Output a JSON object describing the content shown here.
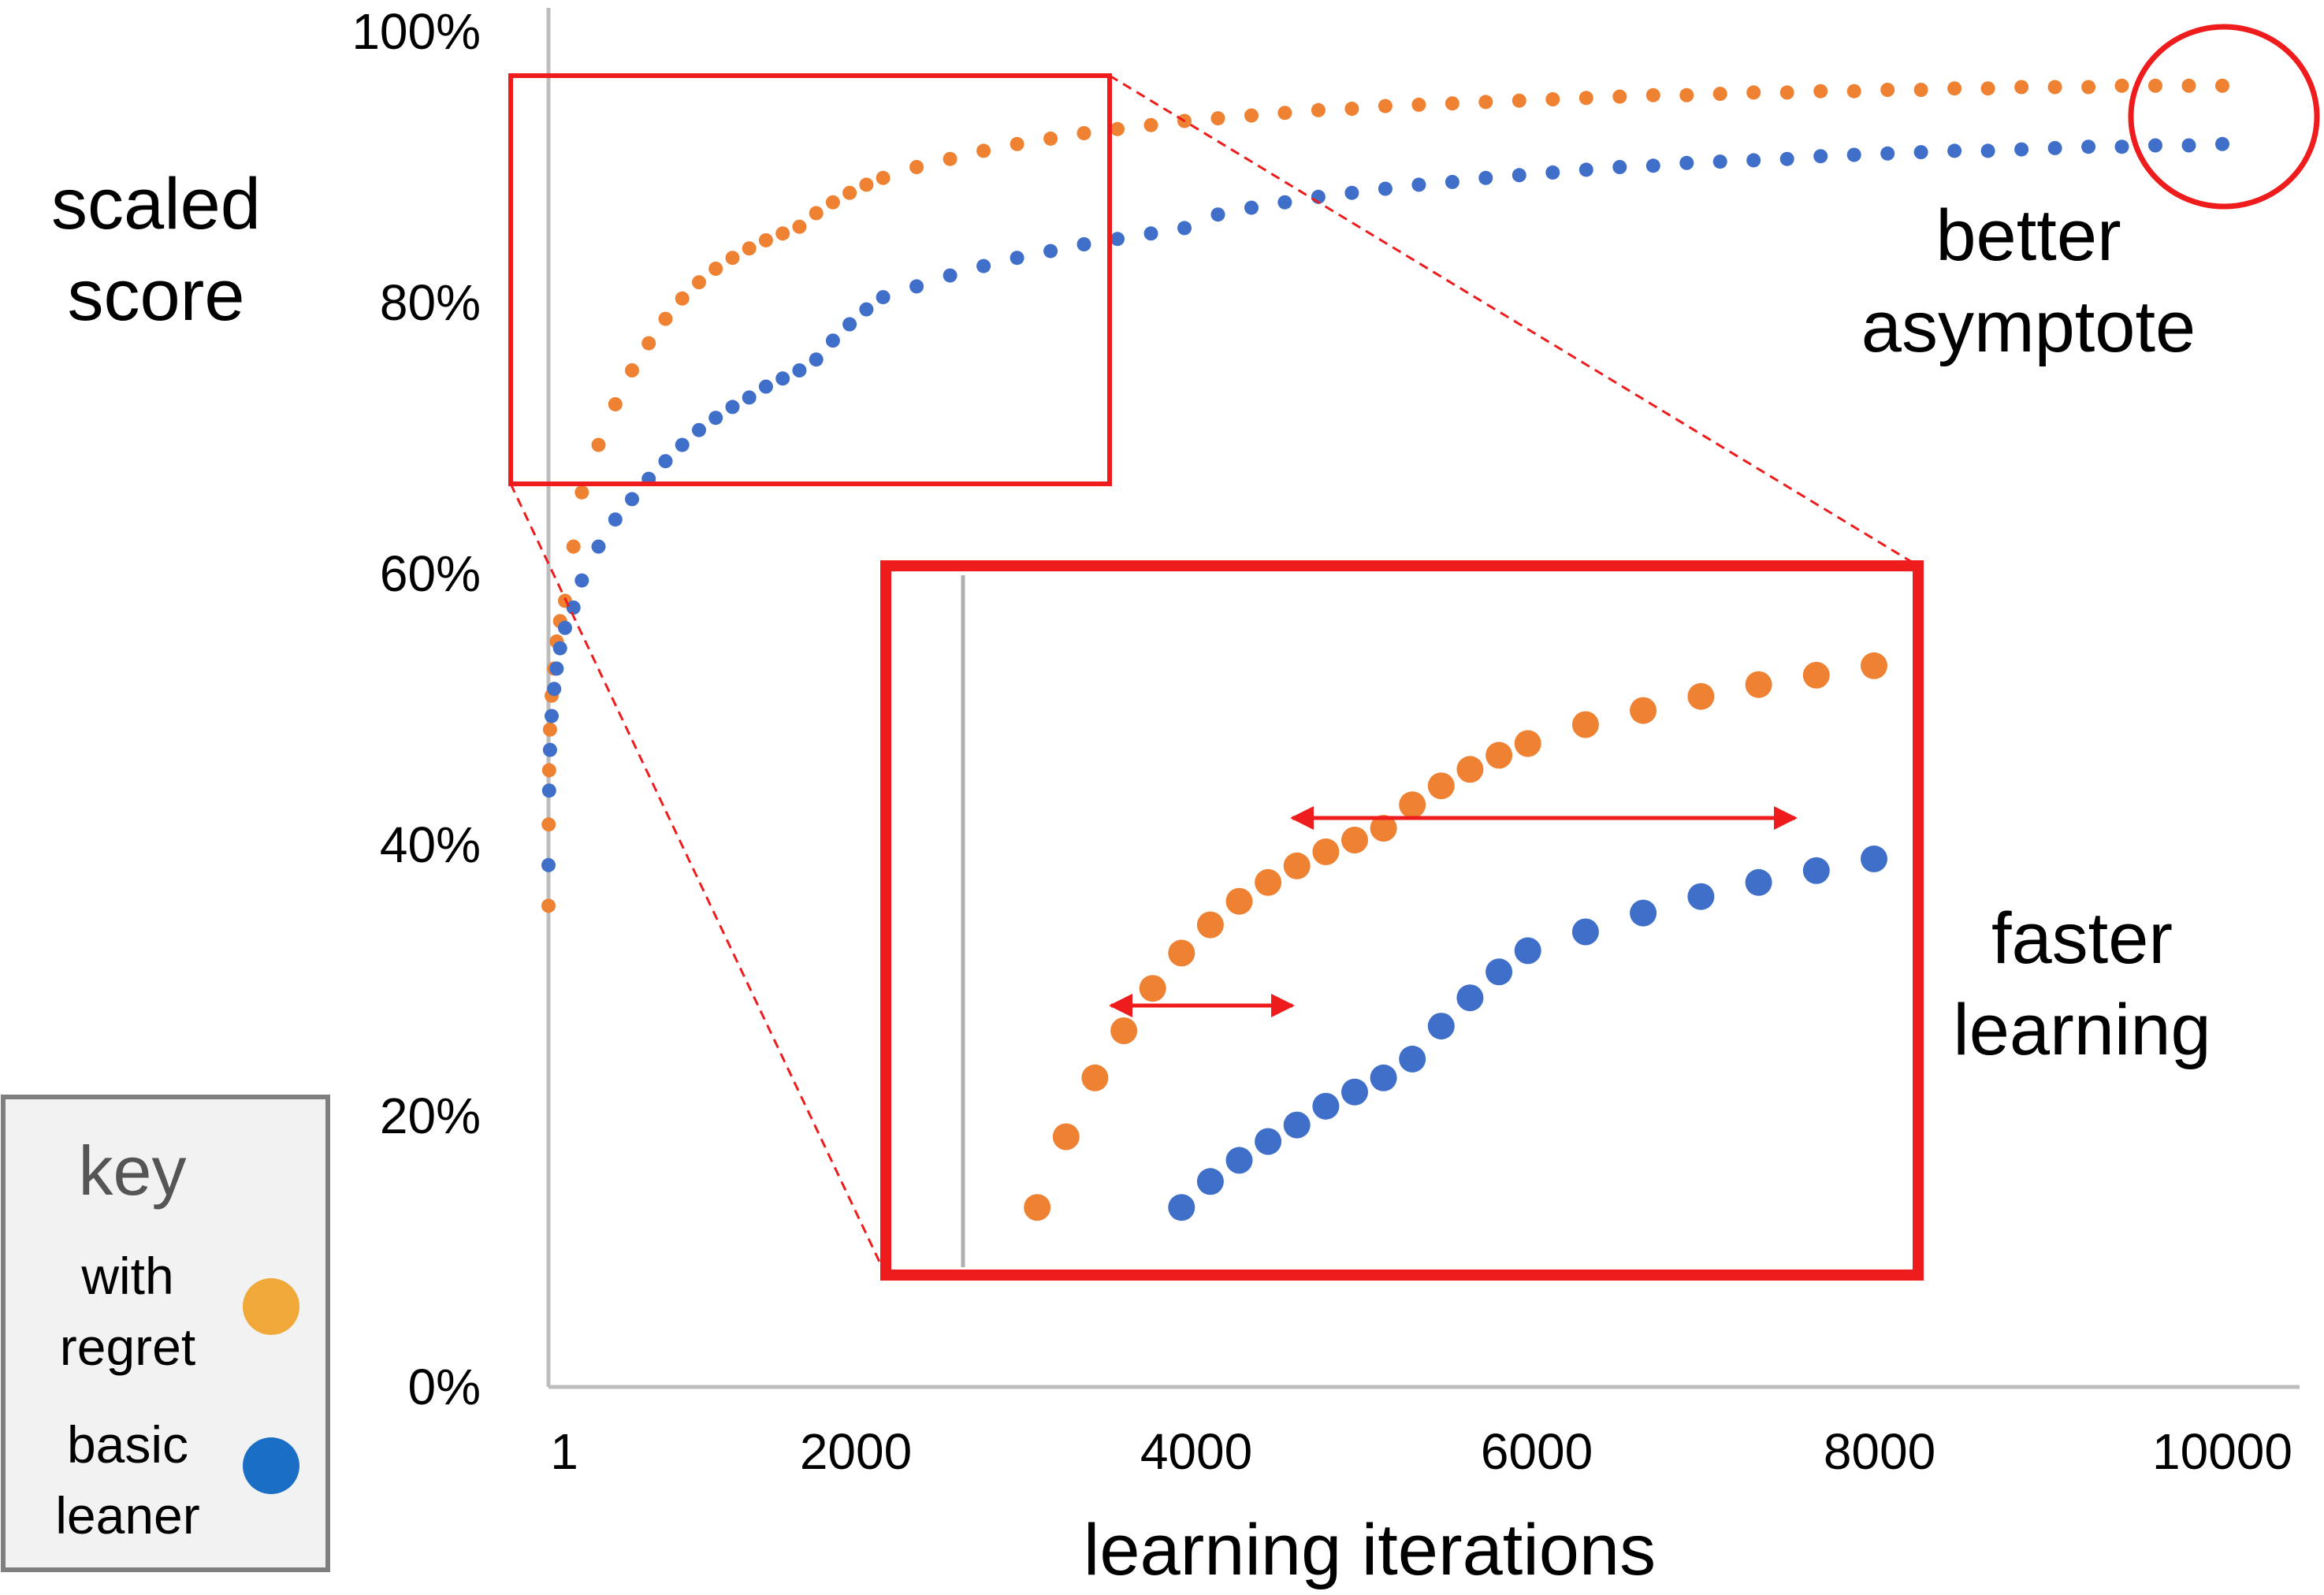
{
  "chart_data": {
    "type": "scatter",
    "title": "",
    "ylabel": "scaled score",
    "xlabel": "learning iterations",
    "xlim": [
      1,
      10000
    ],
    "ylim": [
      0,
      100
    ],
    "x_ticks": [
      "1",
      "2000",
      "4000",
      "6000",
      "8000",
      "10000"
    ],
    "y_ticks": [
      "100%",
      "80%",
      "60%",
      "40%",
      "20%",
      "0%"
    ],
    "grid": false,
    "legend": {
      "title": "key",
      "position": "bottom-left",
      "entries": [
        {
          "label": "with regret",
          "color": "#f0a838"
        },
        {
          "label": "basic leaner",
          "color": "#1a6fc4"
        }
      ]
    },
    "annotations": [
      "better asymptote",
      "faster learning"
    ],
    "series": [
      {
        "name": "with regret",
        "color": "#ee8232",
        "x": [
          1,
          2,
          5,
          10,
          20,
          35,
          50,
          70,
          100,
          150,
          200,
          300,
          400,
          500,
          600,
          700,
          800,
          900,
          1000,
          1100,
          1200,
          1300,
          1400,
          1500,
          1600,
          1700,
          1800,
          1900,
          2000,
          2200,
          2400,
          2600,
          2800,
          3000,
          3200,
          3400,
          3600,
          3800,
          4000,
          4200,
          4400,
          4600,
          4800,
          5000,
          5200,
          5400,
          5600,
          5800,
          6000,
          6200,
          6400,
          6600,
          6800,
          7000,
          7200,
          7400,
          7600,
          7800,
          8000,
          8200,
          8400,
          8600,
          8800,
          9000,
          9200,
          9400,
          9600,
          9800,
          10000
        ],
        "y": [
          35.5,
          41.5,
          45.5,
          48.5,
          51,
          53,
          55,
          56.5,
          58,
          62,
          66,
          69.5,
          72.5,
          75,
          77,
          78.8,
          80.3,
          81.5,
          82.5,
          83.3,
          84,
          84.6,
          85.1,
          85.6,
          86.6,
          87.4,
          88.1,
          88.7,
          89.2,
          90,
          90.6,
          91.2,
          91.7,
          92.1,
          92.5,
          92.8,
          93.1,
          93.4,
          93.6,
          93.8,
          94,
          94.2,
          94.3,
          94.5,
          94.6,
          94.7,
          94.8,
          94.9,
          95,
          95.1,
          95.2,
          95.3,
          95.3,
          95.4,
          95.5,
          95.5,
          95.6,
          95.6,
          95.7,
          95.7,
          95.8,
          95.8,
          95.9,
          95.9,
          95.9,
          96,
          96,
          96,
          96
        ]
      },
      {
        "name": "basic leaner",
        "color": "#3f6fc8",
        "x": [
          1,
          5,
          10,
          20,
          35,
          50,
          70,
          100,
          150,
          200,
          300,
          400,
          500,
          600,
          700,
          800,
          900,
          1000,
          1100,
          1200,
          1300,
          1400,
          1500,
          1600,
          1700,
          1800,
          1900,
          2000,
          2200,
          2400,
          2600,
          2800,
          3000,
          3200,
          3400,
          3600,
          3800,
          4000,
          4200,
          4400,
          4600,
          4800,
          5000,
          5200,
          5400,
          5600,
          5800,
          6000,
          6200,
          6400,
          6600,
          6800,
          7000,
          7200,
          7400,
          7600,
          7800,
          8000,
          8200,
          8400,
          8600,
          8800,
          9000,
          9200,
          9400,
          9600,
          9800,
          10000
        ],
        "y": [
          38.5,
          44,
          47,
          49.5,
          51.5,
          53,
          54.5,
          56,
          57.5,
          59.5,
          62,
          64,
          65.5,
          67,
          68.3,
          69.5,
          70.6,
          71.5,
          72.3,
          73,
          73.8,
          74.4,
          75,
          75.8,
          77.2,
          78.4,
          79.5,
          80.4,
          81.2,
          82,
          82.7,
          83.3,
          83.8,
          84.3,
          84.7,
          85.1,
          85.5,
          86.5,
          87,
          87.4,
          87.8,
          88.1,
          88.4,
          88.7,
          88.9,
          89.2,
          89.4,
          89.6,
          89.8,
          90,
          90.1,
          90.3,
          90.4,
          90.5,
          90.6,
          90.8,
          90.9,
          91,
          91.1,
          91.2,
          91.2,
          91.3,
          91.4,
          91.5,
          91.5,
          91.6,
          91.6,
          91.7
        ]
      }
    ]
  }
}
